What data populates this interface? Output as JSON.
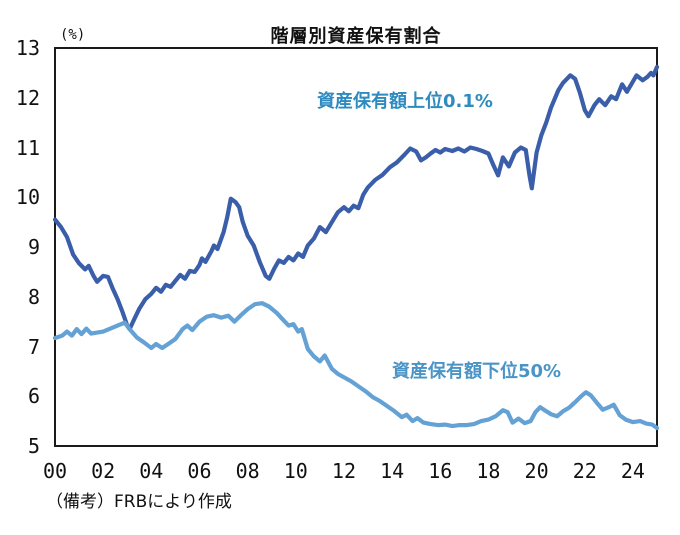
{
  "chart_data": {
    "type": "line",
    "title": "階層別資産保有割合",
    "y_unit": "(%)",
    "note": "（備考）FRBにより作成",
    "xlim": [
      2000,
      2025
    ],
    "ylim": [
      5,
      13
    ],
    "y_ticks": [
      13,
      12,
      11,
      10,
      9,
      8,
      7,
      6,
      5
    ],
    "x_ticks": [
      "00",
      "02",
      "04",
      "06",
      "08",
      "10",
      "12",
      "14",
      "16",
      "18",
      "20",
      "22",
      "24"
    ],
    "grid": false,
    "legend_position": "inline-annotations",
    "series": [
      {
        "name": "資産保有額上位0.1%",
        "label_color": "#2e8abf",
        "color": "#3a5ea9",
        "points": [
          [
            2000.0,
            9.55
          ],
          [
            2000.25,
            9.4
          ],
          [
            2000.5,
            9.2
          ],
          [
            2000.75,
            8.85
          ],
          [
            2001.0,
            8.67
          ],
          [
            2001.25,
            8.55
          ],
          [
            2001.4,
            8.62
          ],
          [
            2001.6,
            8.42
          ],
          [
            2001.75,
            8.3
          ],
          [
            2002.0,
            8.42
          ],
          [
            2002.2,
            8.4
          ],
          [
            2002.4,
            8.16
          ],
          [
            2002.6,
            7.95
          ],
          [
            2002.8,
            7.7
          ],
          [
            2003.0,
            7.42
          ],
          [
            2003.1,
            7.35
          ],
          [
            2003.3,
            7.56
          ],
          [
            2003.5,
            7.76
          ],
          [
            2003.75,
            7.95
          ],
          [
            2004.0,
            8.06
          ],
          [
            2004.2,
            8.18
          ],
          [
            2004.4,
            8.1
          ],
          [
            2004.6,
            8.24
          ],
          [
            2004.8,
            8.2
          ],
          [
            2005.0,
            8.32
          ],
          [
            2005.2,
            8.44
          ],
          [
            2005.4,
            8.36
          ],
          [
            2005.6,
            8.52
          ],
          [
            2005.8,
            8.5
          ],
          [
            2006.0,
            8.64
          ],
          [
            2006.1,
            8.77
          ],
          [
            2006.25,
            8.7
          ],
          [
            2006.5,
            8.92
          ],
          [
            2006.6,
            9.03
          ],
          [
            2006.75,
            8.96
          ],
          [
            2007.0,
            9.3
          ],
          [
            2007.15,
            9.6
          ],
          [
            2007.3,
            9.97
          ],
          [
            2007.5,
            9.9
          ],
          [
            2007.65,
            9.8
          ],
          [
            2007.8,
            9.5
          ],
          [
            2008.0,
            9.23
          ],
          [
            2008.25,
            9.03
          ],
          [
            2008.5,
            8.7
          ],
          [
            2008.75,
            8.42
          ],
          [
            2008.9,
            8.36
          ],
          [
            2009.1,
            8.56
          ],
          [
            2009.3,
            8.73
          ],
          [
            2009.5,
            8.68
          ],
          [
            2009.7,
            8.8
          ],
          [
            2009.9,
            8.73
          ],
          [
            2010.1,
            8.87
          ],
          [
            2010.3,
            8.8
          ],
          [
            2010.5,
            9.03
          ],
          [
            2010.75,
            9.17
          ],
          [
            2011.0,
            9.4
          ],
          [
            2011.25,
            9.3
          ],
          [
            2011.5,
            9.5
          ],
          [
            2011.75,
            9.7
          ],
          [
            2012.0,
            9.8
          ],
          [
            2012.2,
            9.72
          ],
          [
            2012.4,
            9.83
          ],
          [
            2012.6,
            9.78
          ],
          [
            2012.8,
            10.05
          ],
          [
            2013.0,
            10.2
          ],
          [
            2013.3,
            10.35
          ],
          [
            2013.6,
            10.45
          ],
          [
            2013.9,
            10.6
          ],
          [
            2014.2,
            10.7
          ],
          [
            2014.5,
            10.85
          ],
          [
            2014.75,
            10.98
          ],
          [
            2015.0,
            10.92
          ],
          [
            2015.2,
            10.74
          ],
          [
            2015.4,
            10.8
          ],
          [
            2015.6,
            10.88
          ],
          [
            2015.8,
            10.95
          ],
          [
            2016.0,
            10.9
          ],
          [
            2016.2,
            10.97
          ],
          [
            2016.5,
            10.93
          ],
          [
            2016.75,
            10.98
          ],
          [
            2017.0,
            10.92
          ],
          [
            2017.25,
            11.0
          ],
          [
            2017.5,
            10.97
          ],
          [
            2017.75,
            10.93
          ],
          [
            2018.0,
            10.88
          ],
          [
            2018.2,
            10.65
          ],
          [
            2018.4,
            10.44
          ],
          [
            2018.6,
            10.8
          ],
          [
            2018.85,
            10.62
          ],
          [
            2019.1,
            10.9
          ],
          [
            2019.35,
            11.0
          ],
          [
            2019.55,
            10.95
          ],
          [
            2019.7,
            10.45
          ],
          [
            2019.8,
            10.18
          ],
          [
            2020.0,
            10.9
          ],
          [
            2020.2,
            11.25
          ],
          [
            2020.4,
            11.5
          ],
          [
            2020.6,
            11.8
          ],
          [
            2020.9,
            12.15
          ],
          [
            2021.1,
            12.3
          ],
          [
            2021.4,
            12.45
          ],
          [
            2021.6,
            12.38
          ],
          [
            2021.8,
            12.1
          ],
          [
            2022.0,
            11.75
          ],
          [
            2022.15,
            11.63
          ],
          [
            2022.4,
            11.85
          ],
          [
            2022.6,
            11.97
          ],
          [
            2022.85,
            11.85
          ],
          [
            2023.1,
            12.03
          ],
          [
            2023.3,
            11.97
          ],
          [
            2023.55,
            12.27
          ],
          [
            2023.75,
            12.12
          ],
          [
            2024.15,
            12.45
          ],
          [
            2024.4,
            12.35
          ],
          [
            2024.6,
            12.42
          ],
          [
            2024.75,
            12.5
          ],
          [
            2024.85,
            12.45
          ],
          [
            2025.0,
            12.62
          ]
        ]
      },
      {
        "name": "資産保有額下位50%",
        "label_color": "#4a94c6",
        "color": "#64a1d4",
        "points": [
          [
            2000.0,
            7.17
          ],
          [
            2000.3,
            7.22
          ],
          [
            2000.5,
            7.3
          ],
          [
            2000.7,
            7.22
          ],
          [
            2000.9,
            7.35
          ],
          [
            2001.1,
            7.25
          ],
          [
            2001.3,
            7.36
          ],
          [
            2001.5,
            7.26
          ],
          [
            2001.75,
            7.28
          ],
          [
            2002.0,
            7.3
          ],
          [
            2002.3,
            7.36
          ],
          [
            2002.6,
            7.42
          ],
          [
            2002.9,
            7.48
          ],
          [
            2003.1,
            7.35
          ],
          [
            2003.4,
            7.18
          ],
          [
            2003.7,
            7.08
          ],
          [
            2004.0,
            6.97
          ],
          [
            2004.2,
            7.05
          ],
          [
            2004.45,
            6.97
          ],
          [
            2004.7,
            7.05
          ],
          [
            2005.0,
            7.15
          ],
          [
            2005.3,
            7.35
          ],
          [
            2005.5,
            7.42
          ],
          [
            2005.7,
            7.33
          ],
          [
            2006.0,
            7.5
          ],
          [
            2006.3,
            7.6
          ],
          [
            2006.6,
            7.63
          ],
          [
            2006.9,
            7.58
          ],
          [
            2007.2,
            7.62
          ],
          [
            2007.45,
            7.5
          ],
          [
            2007.7,
            7.62
          ],
          [
            2008.0,
            7.75
          ],
          [
            2008.3,
            7.85
          ],
          [
            2008.6,
            7.87
          ],
          [
            2008.9,
            7.8
          ],
          [
            2009.2,
            7.68
          ],
          [
            2009.5,
            7.52
          ],
          [
            2009.7,
            7.42
          ],
          [
            2009.9,
            7.45
          ],
          [
            2010.1,
            7.3
          ],
          [
            2010.25,
            7.35
          ],
          [
            2010.5,
            6.95
          ],
          [
            2010.75,
            6.8
          ],
          [
            2011.0,
            6.7
          ],
          [
            2011.2,
            6.82
          ],
          [
            2011.5,
            6.55
          ],
          [
            2011.75,
            6.45
          ],
          [
            2012.0,
            6.38
          ],
          [
            2012.3,
            6.3
          ],
          [
            2012.6,
            6.2
          ],
          [
            2012.9,
            6.1
          ],
          [
            2013.2,
            5.98
          ],
          [
            2013.5,
            5.9
          ],
          [
            2013.8,
            5.8
          ],
          [
            2014.1,
            5.7
          ],
          [
            2014.4,
            5.58
          ],
          [
            2014.6,
            5.63
          ],
          [
            2014.85,
            5.5
          ],
          [
            2015.05,
            5.56
          ],
          [
            2015.3,
            5.47
          ],
          [
            2015.6,
            5.44
          ],
          [
            2015.9,
            5.42
          ],
          [
            2016.2,
            5.43
          ],
          [
            2016.5,
            5.4
          ],
          [
            2016.8,
            5.42
          ],
          [
            2017.1,
            5.42
          ],
          [
            2017.4,
            5.44
          ],
          [
            2017.7,
            5.5
          ],
          [
            2018.0,
            5.53
          ],
          [
            2018.3,
            5.6
          ],
          [
            2018.6,
            5.72
          ],
          [
            2018.8,
            5.68
          ],
          [
            2019.0,
            5.47
          ],
          [
            2019.25,
            5.55
          ],
          [
            2019.5,
            5.46
          ],
          [
            2019.75,
            5.5
          ],
          [
            2019.95,
            5.68
          ],
          [
            2020.15,
            5.78
          ],
          [
            2020.4,
            5.7
          ],
          [
            2020.6,
            5.64
          ],
          [
            2020.85,
            5.6
          ],
          [
            2021.1,
            5.7
          ],
          [
            2021.35,
            5.77
          ],
          [
            2021.6,
            5.88
          ],
          [
            2021.85,
            6.0
          ],
          [
            2022.05,
            6.08
          ],
          [
            2022.25,
            6.02
          ],
          [
            2022.5,
            5.87
          ],
          [
            2022.75,
            5.73
          ],
          [
            2023.0,
            5.78
          ],
          [
            2023.2,
            5.83
          ],
          [
            2023.45,
            5.62
          ],
          [
            2023.7,
            5.53
          ],
          [
            2024.0,
            5.48
          ],
          [
            2024.3,
            5.5
          ],
          [
            2024.55,
            5.45
          ],
          [
            2024.8,
            5.43
          ],
          [
            2025.0,
            5.36
          ]
        ]
      }
    ],
    "axis_color": "#1a1a1a"
  }
}
